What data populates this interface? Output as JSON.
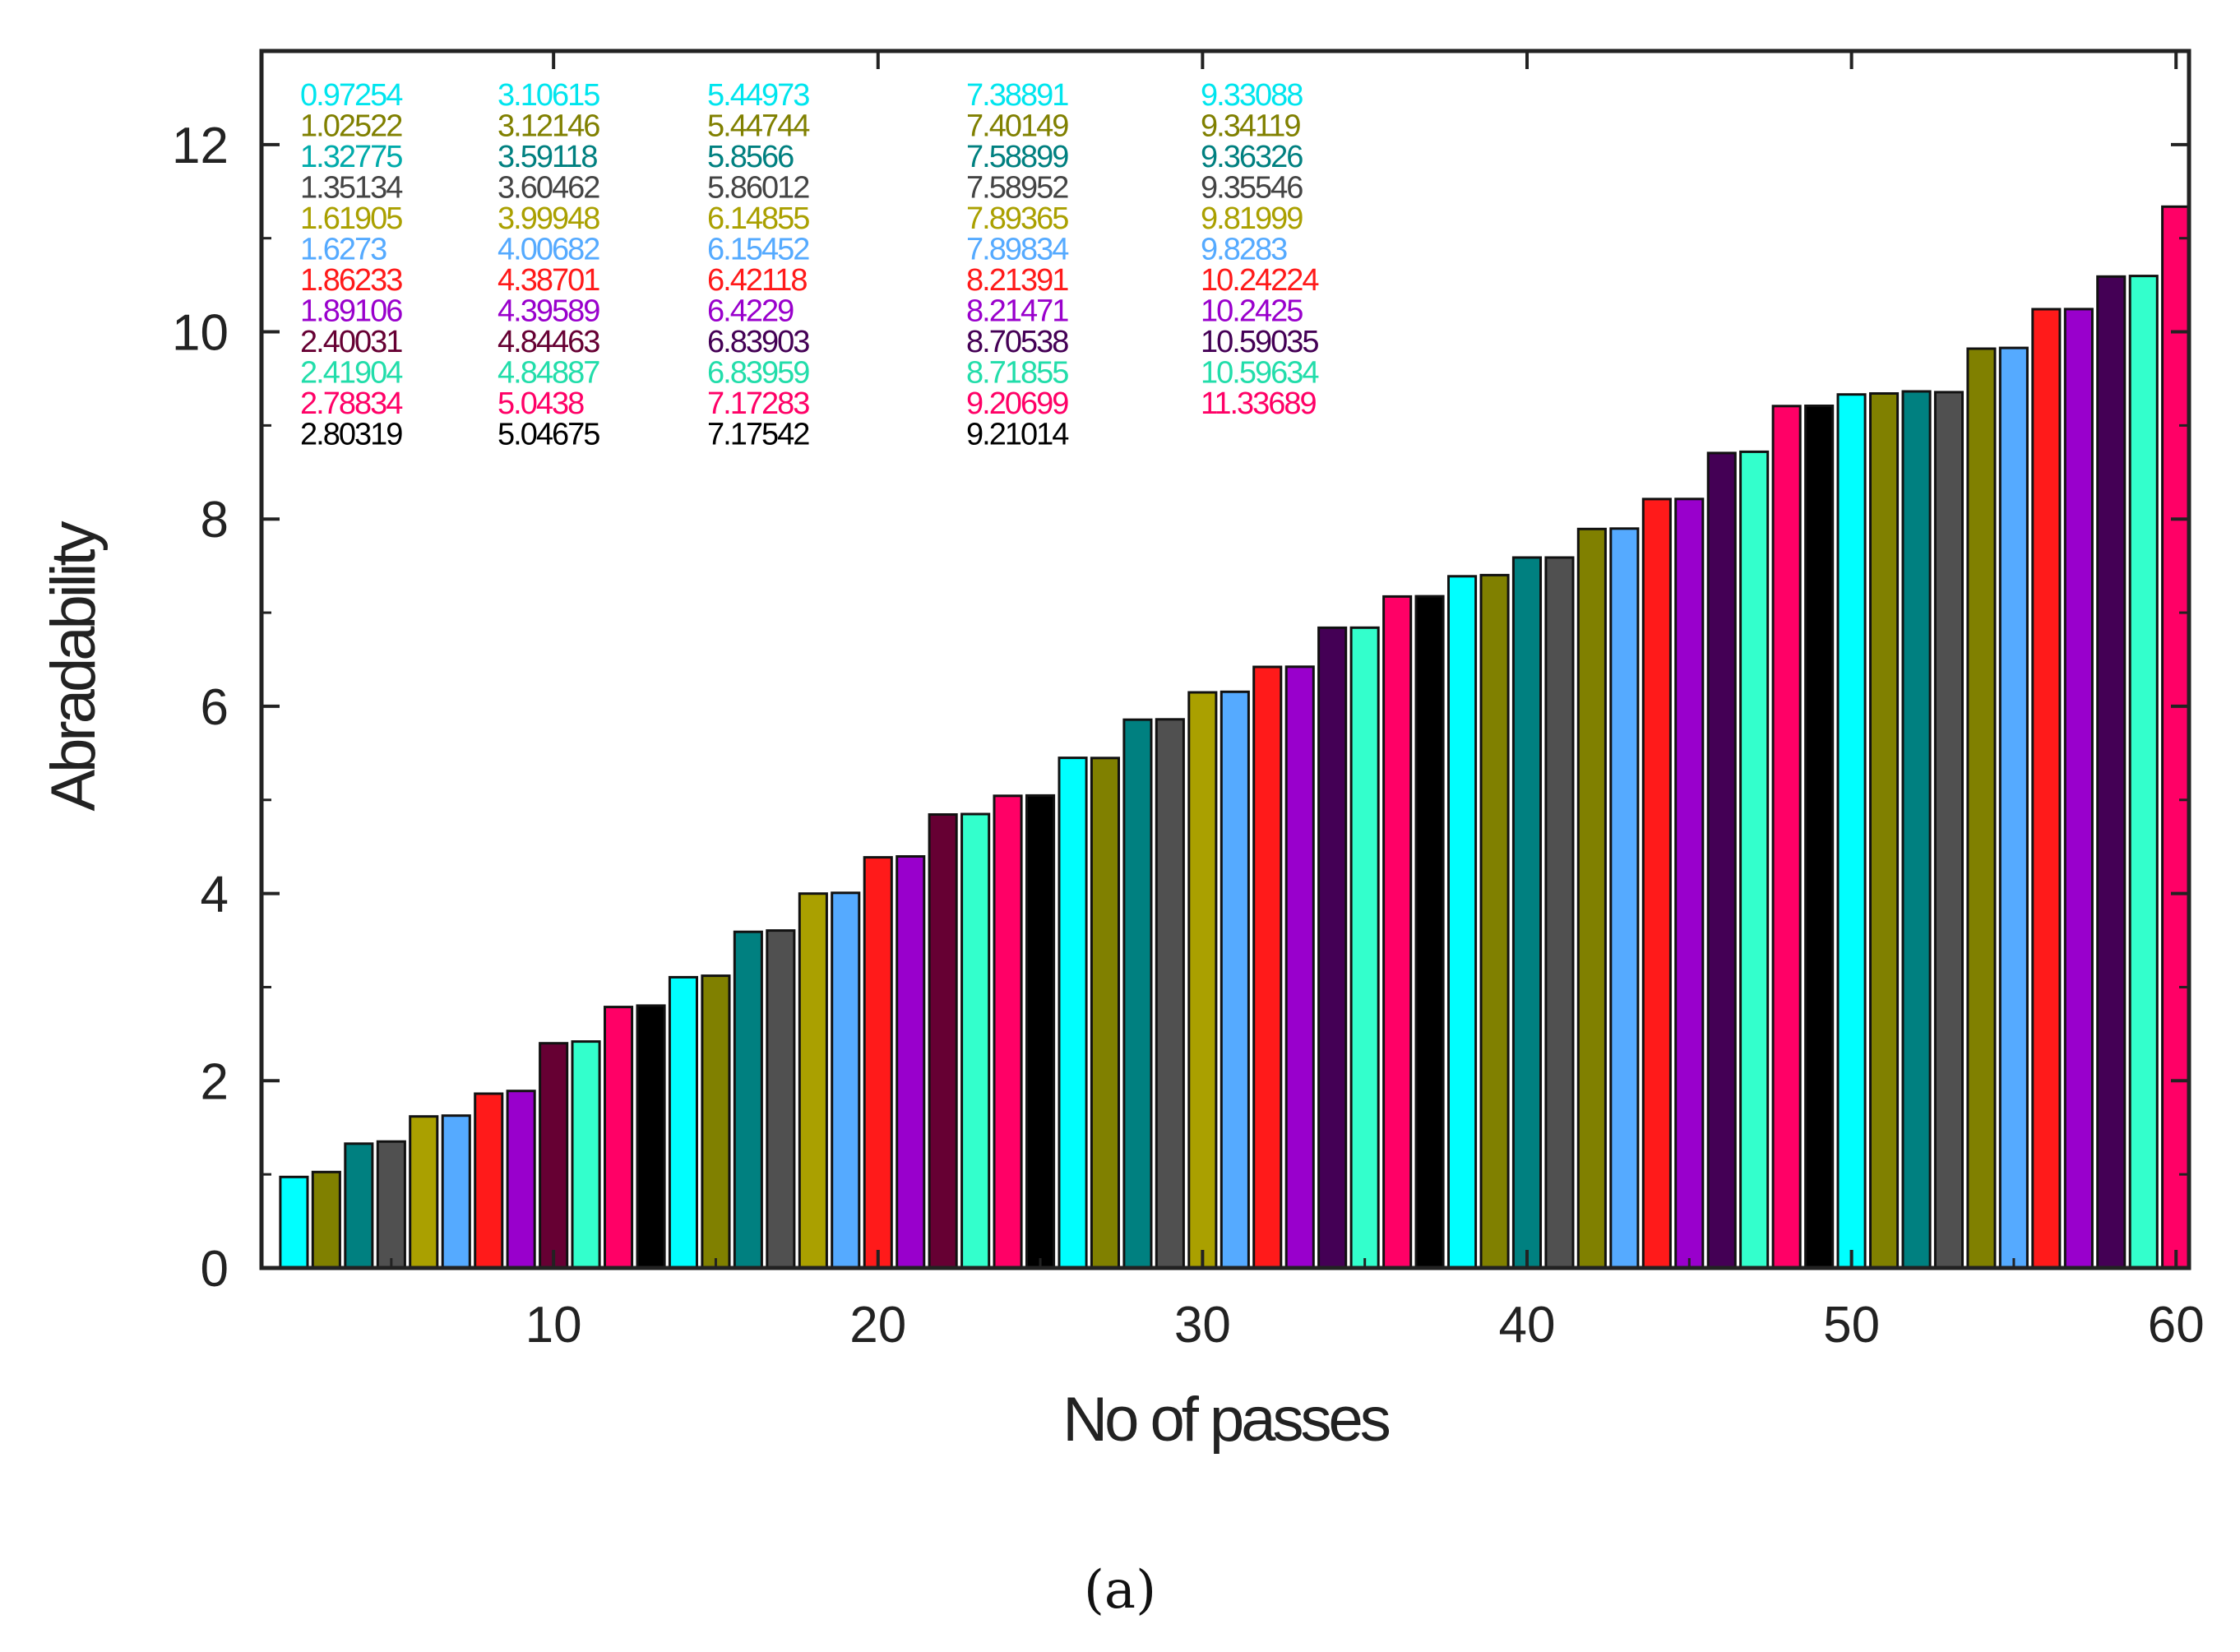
{
  "chart_data": {
    "type": "bar",
    "xlabel": "No of passes",
    "ylabel": "Abradability",
    "panel_label": "(a)",
    "xlim": [
      1,
      60.4
    ],
    "ylim": [
      0,
      13
    ],
    "x_ticks": [
      10,
      20,
      30,
      40,
      50,
      60
    ],
    "y_ticks": [
      0,
      2,
      4,
      6,
      8,
      10,
      12
    ],
    "x": [
      2,
      3,
      4,
      5,
      6,
      7,
      8,
      9,
      10,
      11,
      12,
      13,
      14,
      15,
      16,
      17,
      18,
      19,
      20,
      21,
      22,
      23,
      24,
      25,
      26,
      27,
      28,
      29,
      30,
      31,
      32,
      33,
      34,
      35,
      36,
      37,
      38,
      39,
      40,
      41,
      42,
      43,
      44,
      45,
      46,
      47,
      48,
      49,
      50,
      51,
      52,
      53,
      54,
      55,
      56,
      57,
      58,
      59,
      60
    ],
    "values": [
      0.97254,
      1.02522,
      1.32775,
      1.35134,
      1.61905,
      1.6273,
      1.86233,
      1.89106,
      2.40031,
      2.41904,
      2.78834,
      2.80319,
      3.10615,
      3.12146,
      3.59118,
      3.60462,
      3.99948,
      4.00682,
      4.38701,
      4.39589,
      4.84463,
      4.84887,
      5.0438,
      5.04675,
      5.44973,
      5.44744,
      5.8566,
      5.86012,
      6.14855,
      6.15452,
      6.42118,
      6.4229,
      6.83903,
      6.83959,
      7.17283,
      7.17542,
      7.38891,
      7.40149,
      7.58899,
      7.58952,
      7.89365,
      7.89834,
      8.21391,
      8.21471,
      8.70538,
      8.71855,
      9.20699,
      9.21014,
      9.33088,
      9.34119,
      9.36326,
      9.35546,
      9.81999,
      9.8283,
      10.24224,
      10.2425,
      10.59035,
      10.59634,
      11.33689
    ],
    "colors": [
      "#00ffff",
      "#808000",
      "#008080",
      "#505050",
      "#aaa000",
      "#55aaff",
      "#ff1a1a",
      "#9900cc",
      "#660033",
      "#33ffcc",
      "#ff0066",
      "#000000",
      "#00ffff",
      "#808000",
      "#008080",
      "#505050",
      "#aaa000",
      "#55aaff",
      "#ff1a1a",
      "#9900cc",
      "#660033",
      "#33ffcc",
      "#ff0066",
      "#000000",
      "#00ffff",
      "#808000",
      "#008080",
      "#505050",
      "#aaa000",
      "#55aaff",
      "#ff1a1a",
      "#9900cc",
      "#440055",
      "#33ffcc",
      "#ff0066",
      "#000000",
      "#00ffff",
      "#808000",
      "#008080",
      "#505050",
      "#808000",
      "#55aaff",
      "#ff1a1a",
      "#9900cc",
      "#440055",
      "#33ffcc",
      "#ff0066",
      "#000000",
      "#00ffff",
      "#808000",
      "#008080",
      "#505050",
      "#808000",
      "#55aaff",
      "#ff1a1a",
      "#9900cc",
      "#440055",
      "#33ffcc",
      "#ff0066"
    ],
    "value_labels": [
      {
        "text": "0.97254",
        "color": "#00e5ee"
      },
      {
        "text": "1.02522",
        "color": "#808000"
      },
      {
        "text": "1.32775",
        "color": "#00aaaa"
      },
      {
        "text": "1.35134",
        "color": "#444444"
      },
      {
        "text": "1.61905",
        "color": "#aaa000"
      },
      {
        "text": "1.6273",
        "color": "#55aaff"
      },
      {
        "text": "1.86233",
        "color": "#ff1a1a"
      },
      {
        "text": "1.89106",
        "color": "#9900cc"
      },
      {
        "text": "2.40031",
        "color": "#660033"
      },
      {
        "text": "2.41904",
        "color": "#22ddaa"
      },
      {
        "text": "2.78834",
        "color": "#ff0066"
      },
      {
        "text": "2.80319",
        "color": "#000000"
      },
      {
        "text": "3.10615",
        "color": "#00e5ee"
      },
      {
        "text": "3.12146",
        "color": "#808000"
      },
      {
        "text": "3.59118",
        "color": "#008080"
      },
      {
        "text": "3.60462",
        "color": "#444444"
      },
      {
        "text": "3.99948",
        "color": "#aaa000"
      },
      {
        "text": "4.00682",
        "color": "#55aaff"
      },
      {
        "text": "4.38701",
        "color": "#ff1a1a"
      },
      {
        "text": "4.39589",
        "color": "#9900cc"
      },
      {
        "text": "4.84463",
        "color": "#660033"
      },
      {
        "text": "4.84887",
        "color": "#22ddaa"
      },
      {
        "text": "5.0438",
        "color": "#ff0066"
      },
      {
        "text": "5.04675",
        "color": "#000000"
      },
      {
        "text": "5.44973",
        "color": "#00e5ee"
      },
      {
        "text": "5.44744",
        "color": "#808000"
      },
      {
        "text": "5.8566",
        "color": "#008080"
      },
      {
        "text": "5.86012",
        "color": "#444444"
      },
      {
        "text": "6.14855",
        "color": "#aaa000"
      },
      {
        "text": "6.15452",
        "color": "#55aaff"
      },
      {
        "text": "6.42118",
        "color": "#ff1a1a"
      },
      {
        "text": "6.4229",
        "color": "#9900cc"
      },
      {
        "text": "6.83903",
        "color": "#440055"
      },
      {
        "text": "6.83959",
        "color": "#22ddaa"
      },
      {
        "text": "7.17283",
        "color": "#ff0066"
      },
      {
        "text": "7.17542",
        "color": "#000000"
      },
      {
        "text": "7.38891",
        "color": "#00e5ee"
      },
      {
        "text": "7.40149",
        "color": "#808000"
      },
      {
        "text": "7.58899",
        "color": "#008080"
      },
      {
        "text": "7.58952",
        "color": "#444444"
      },
      {
        "text": "7.89365",
        "color": "#aaa000"
      },
      {
        "text": "7.89834",
        "color": "#55aaff"
      },
      {
        "text": "8.21391",
        "color": "#ff1a1a"
      },
      {
        "text": "8.21471",
        "color": "#9900cc"
      },
      {
        "text": "8.70538",
        "color": "#440055"
      },
      {
        "text": "8.71855",
        "color": "#22ddaa"
      },
      {
        "text": "9.20699",
        "color": "#ff0066"
      },
      {
        "text": "9.21014",
        "color": "#000000"
      },
      {
        "text": "9.33088",
        "color": "#00e5ee"
      },
      {
        "text": "9.34119",
        "color": "#808000"
      },
      {
        "text": "9.36326",
        "color": "#008080"
      },
      {
        "text": "9.35546",
        "color": "#444444"
      },
      {
        "text": "9.81999",
        "color": "#aaa000"
      },
      {
        "text": "9.8283",
        "color": "#55aaff"
      },
      {
        "text": "10.24224",
        "color": "#ff1a1a"
      },
      {
        "text": "10.2425",
        "color": "#9900cc"
      },
      {
        "text": "10.59035",
        "color": "#440055"
      },
      {
        "text": "10.59634",
        "color": "#22ddaa"
      },
      {
        "text": "11.33689",
        "color": "#ff0066"
      }
    ]
  }
}
